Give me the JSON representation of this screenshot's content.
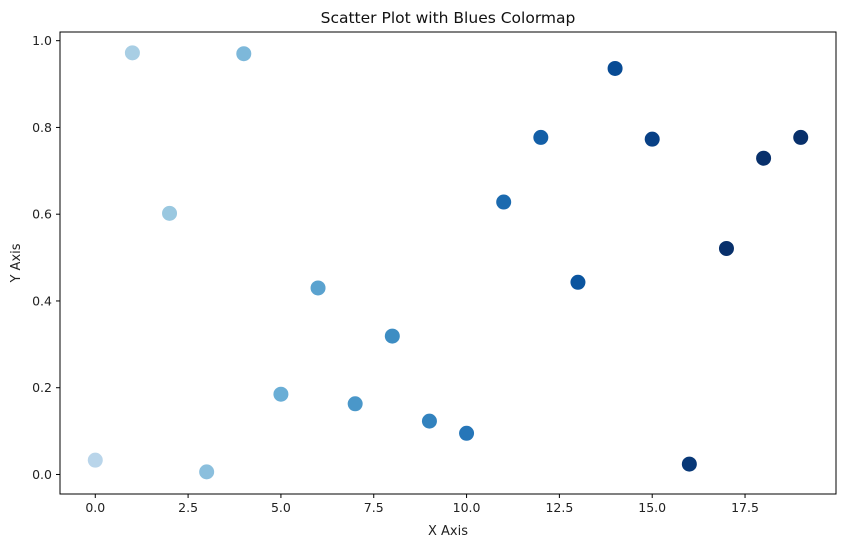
{
  "chart_data": {
    "type": "scatter",
    "title": "Scatter Plot with Blues Colormap",
    "xlabel": "X Axis",
    "ylabel": "Y Axis",
    "xlim": [
      -0.95,
      19.95
    ],
    "ylim": [
      -0.045,
      1.02
    ],
    "xticks": [
      0.0,
      2.5,
      5.0,
      7.5,
      10.0,
      12.5,
      15.0,
      17.5
    ],
    "xtick_labels": [
      "0.0",
      "2.5",
      "5.0",
      "7.5",
      "10.0",
      "12.5",
      "15.0",
      "17.5"
    ],
    "yticks": [
      0.0,
      0.2,
      0.4,
      0.6,
      0.8,
      1.0
    ],
    "ytick_labels": [
      "0.0",
      "0.2",
      "0.4",
      "0.6",
      "0.8",
      "1.0"
    ],
    "grid": false,
    "colormap": "Blues",
    "x": [
      0,
      1,
      2,
      3,
      4,
      5,
      6,
      7,
      8,
      9,
      10,
      11,
      12,
      13,
      14,
      15,
      16,
      17,
      18,
      19
    ],
    "y": [
      0.033,
      0.972,
      0.602,
      0.006,
      0.97,
      0.185,
      0.43,
      0.163,
      0.319,
      0.123,
      0.095,
      0.628,
      0.777,
      0.443,
      0.936,
      0.773,
      0.024,
      0.521,
      0.729,
      0.777
    ],
    "colors": [
      "#b9d5ea",
      "#a8cee4",
      "#9ac8e0",
      "#8bbfdd",
      "#7db8da",
      "#6aaed6",
      "#5aa2cf",
      "#4a97c9",
      "#3d8dc3",
      "#3282be",
      "#2676b8",
      "#1b6aaf",
      "#135fa7",
      "#0b559f",
      "#084b94",
      "#084085",
      "#083877",
      "#08306b",
      "#08306b",
      "#08306b"
    ]
  }
}
